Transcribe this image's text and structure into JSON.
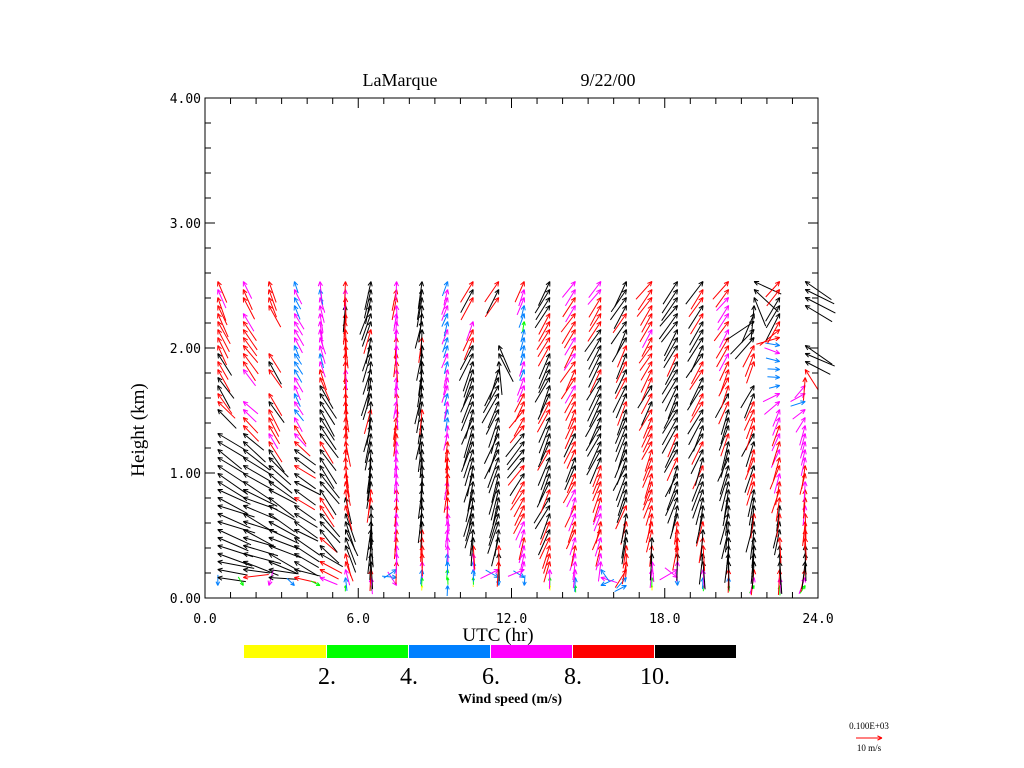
{
  "chart_data": {
    "type": "vector-field",
    "title": "LaMarque",
    "date": "9/22/00",
    "xlabel": "UTC (hr)",
    "ylabel": "Height (km)",
    "xlim": [
      0,
      24
    ],
    "ylim": [
      0,
      4
    ],
    "xticks": [
      "0.0",
      "6.0",
      "12.0",
      "18.0",
      "24.0"
    ],
    "xtick_values": [
      0,
      6,
      12,
      18,
      24
    ],
    "yticks": [
      "0.00",
      "1.00",
      "2.00",
      "3.00",
      "4.00"
    ],
    "ytick_values": [
      0,
      1,
      2,
      3,
      4
    ],
    "colorbar": {
      "title": "Wind speed (m/s)",
      "labels": [
        "2.",
        "4.",
        "6.",
        "8.",
        "10."
      ],
      "bins": [
        {
          "max": 2,
          "color": "#ffff00"
        },
        {
          "max": 4,
          "color": "#00ff00"
        },
        {
          "max": 6,
          "color": "#0080ff"
        },
        {
          "max": 8,
          "color": "#ff00ff"
        },
        {
          "max": 10,
          "color": "#ff0000"
        },
        {
          "max": 999,
          "color": "#000000"
        }
      ]
    },
    "reference_vector": {
      "scale_label": "0.100E+03",
      "label": "10 m/s",
      "speed": 10,
      "color": "#ff0000"
    },
    "gate_levels_km": {
      "start": 0.1,
      "step": 0.064,
      "count": 39
    },
    "profile_format": "[height_km, speed_m_s, direction_toward_deg]",
    "columns": [
      {
        "t": 0.5,
        "profile": [
          [
            0.1,
            3,
            180
          ],
          [
            0.14,
            9,
            268
          ],
          [
            0.25,
            14,
            285
          ],
          [
            0.8,
            14,
            295
          ],
          [
            1.3,
            12,
            305
          ],
          [
            1.6,
            10,
            320
          ],
          [
            1.8,
            9,
            330
          ],
          [
            2.5,
            9,
            335
          ]
        ],
        "gaps": [
          [
            1.35,
            1.45
          ]
        ]
      },
      {
        "t": 1.5,
        "profile": [
          [
            0.1,
            5,
            150
          ],
          [
            0.15,
            9,
            268
          ],
          [
            0.3,
            14,
            290
          ],
          [
            1.1,
            13,
            300
          ],
          [
            1.4,
            9,
            320
          ],
          [
            1.6,
            7,
            315
          ],
          [
            1.8,
            9,
            325
          ],
          [
            2.5,
            8,
            330
          ]
        ],
        "gaps": [
          [
            1.62,
            1.78
          ],
          [
            2.28,
            2.4
          ]
        ]
      },
      {
        "t": 2.5,
        "profile": [
          [
            0.1,
            6,
            190
          ],
          [
            0.15,
            9,
            272
          ],
          [
            0.3,
            13,
            295
          ],
          [
            1.0,
            12,
            305
          ],
          [
            1.3,
            8,
            330
          ],
          [
            1.6,
            9,
            325
          ],
          [
            2.5,
            9,
            335
          ]
        ],
        "gaps": [
          [
            1.68,
            1.8
          ],
          [
            2.02,
            2.3
          ]
        ]
      },
      {
        "t": 3.5,
        "profile": [
          [
            0.1,
            3,
            140
          ],
          [
            0.16,
            8,
            280
          ],
          [
            0.3,
            11,
            298
          ],
          [
            1.1,
            10,
            305
          ],
          [
            1.3,
            8,
            320
          ],
          [
            1.6,
            6,
            330
          ],
          [
            2.5,
            6,
            335
          ]
        ],
        "gaps": []
      },
      {
        "t": 4.5,
        "profile": [
          [
            0.1,
            3,
            120
          ],
          [
            0.16,
            7,
            295
          ],
          [
            0.35,
            9,
            305
          ],
          [
            0.6,
            11,
            320
          ],
          [
            1.7,
            11,
            330
          ],
          [
            1.85,
            7,
            345
          ],
          [
            2.5,
            7,
            350
          ]
        ],
        "gaps": []
      },
      {
        "t": 5.5,
        "profile": [
          [
            0.1,
            1.5,
            0
          ],
          [
            0.3,
            9,
            340
          ],
          [
            0.6,
            11,
            340
          ],
          [
            0.9,
            9,
            350
          ],
          [
            2.5,
            9,
            0
          ]
        ],
        "gaps": []
      },
      {
        "t": 6.5,
        "profile": [
          [
            0.1,
            3,
            350
          ],
          [
            0.3,
            11,
            0
          ],
          [
            1.5,
            11,
            10
          ],
          [
            2.5,
            11,
            15
          ]
        ],
        "gaps": []
      },
      {
        "t": 7.5,
        "profile": [
          [
            0.1,
            5,
            150
          ],
          [
            0.3,
            8,
            0
          ],
          [
            2.5,
            8,
            5
          ]
        ],
        "gaps": []
      },
      {
        "t": 8.5,
        "profile": [
          [
            0.1,
            3,
            0
          ],
          [
            0.4,
            9,
            0
          ],
          [
            0.8,
            11,
            5
          ],
          [
            2.5,
            11,
            10
          ]
        ],
        "gaps": []
      },
      {
        "t": 9.5,
        "profile": [
          [
            0.1,
            3,
            0
          ],
          [
            0.4,
            6,
            0
          ],
          [
            1.1,
            9,
            5
          ],
          [
            1.5,
            6,
            15
          ],
          [
            2.5,
            6,
            20
          ]
        ],
        "gaps": []
      },
      {
        "t": 10.5,
        "profile": [
          [
            0.1,
            1.5,
            0
          ],
          [
            0.4,
            9,
            0
          ],
          [
            0.6,
            12,
            10
          ],
          [
            1.9,
            12,
            20
          ],
          [
            2.2,
            8,
            25
          ],
          [
            2.5,
            9,
            30
          ]
        ],
        "gaps": [
          [
            2.27,
            2.4
          ]
        ]
      },
      {
        "t": 11.5,
        "profile": [
          [
            0.1,
            4,
            170
          ],
          [
            0.3,
            9,
            0
          ],
          [
            0.6,
            12,
            15
          ],
          [
            1.8,
            12,
            25
          ],
          [
            2.0,
            12,
            320
          ],
          [
            2.1,
            9,
            30
          ],
          [
            2.5,
            9,
            30
          ]
        ],
        "gaps": [
          [
            2.05,
            2.35
          ]
        ]
      },
      {
        "t": 12.5,
        "profile": [
          [
            0.1,
            4,
            180
          ],
          [
            0.3,
            7,
            5
          ],
          [
            0.7,
            9,
            25
          ],
          [
            1.3,
            11,
            40
          ],
          [
            1.6,
            7,
            30
          ],
          [
            2.2,
            4,
            15
          ],
          [
            2.5,
            8,
            25
          ]
        ],
        "gaps": []
      },
      {
        "t": 13.5,
        "profile": [
          [
            0.1,
            1.5,
            0
          ],
          [
            0.3,
            9,
            10
          ],
          [
            0.6,
            11,
            25
          ],
          [
            2.0,
            10,
            25
          ],
          [
            2.5,
            10,
            30
          ]
        ],
        "gaps": []
      },
      {
        "t": 14.5,
        "profile": [
          [
            0.1,
            3,
            0
          ],
          [
            0.3,
            8,
            15
          ],
          [
            1.0,
            9,
            25
          ],
          [
            2.2,
            9,
            30
          ],
          [
            2.5,
            8,
            35
          ]
        ],
        "gaps": []
      },
      {
        "t": 15.5,
        "profile": [
          [
            0.1,
            5,
            250
          ],
          [
            0.3,
            7,
            10
          ],
          [
            0.9,
            9,
            25
          ],
          [
            1.2,
            11,
            25
          ],
          [
            1.9,
            11,
            30
          ],
          [
            2.5,
            8,
            35
          ]
        ],
        "gaps": []
      },
      {
        "t": 16.5,
        "profile": [
          [
            0.1,
            5,
            60
          ],
          [
            0.3,
            9,
            5
          ],
          [
            0.8,
            11,
            20
          ],
          [
            2.5,
            10,
            30
          ]
        ],
        "gaps": []
      },
      {
        "t": 17.5,
        "profile": [
          [
            0.1,
            3,
            0
          ],
          [
            0.3,
            9,
            0
          ],
          [
            0.8,
            9,
            20
          ],
          [
            2.5,
            9,
            35
          ]
        ],
        "gaps": []
      },
      {
        "t": 18.5,
        "profile": [
          [
            0.1,
            6,
            180
          ],
          [
            0.3,
            9,
            0
          ],
          [
            0.9,
            11,
            20
          ],
          [
            2.5,
            11,
            35
          ]
        ],
        "gaps": []
      },
      {
        "t": 19.5,
        "profile": [
          [
            0.1,
            3,
            0
          ],
          [
            0.3,
            11,
            0
          ],
          [
            1.0,
            11,
            20
          ],
          [
            2.5,
            10,
            35
          ]
        ],
        "gaps": []
      },
      {
        "t": 20.5,
        "profile": [
          [
            0.1,
            1.5,
            0
          ],
          [
            0.3,
            12,
            0
          ],
          [
            0.9,
            11,
            15
          ],
          [
            1.8,
            9,
            25
          ],
          [
            2.5,
            8,
            40
          ]
        ],
        "gaps": []
      },
      {
        "t": 21.5,
        "profile": [
          [
            0.1,
            3,
            30
          ],
          [
            0.3,
            12,
            0
          ],
          [
            1.0,
            10,
            20
          ],
          [
            1.6,
            9,
            25
          ],
          [
            2.0,
            10,
            20
          ],
          [
            2.2,
            14,
            60
          ],
          [
            2.5,
            12,
            300
          ]
        ],
        "gaps": [
          [
            1.75,
            1.85
          ]
        ]
      },
      {
        "t": 22.5,
        "profile": [
          [
            0.1,
            3,
            0
          ],
          [
            0.3,
            12,
            0
          ],
          [
            1.0,
            9,
            15
          ],
          [
            1.5,
            8,
            25
          ],
          [
            1.7,
            5,
            80
          ],
          [
            2.0,
            6,
            110
          ],
          [
            2.2,
            11,
            30
          ],
          [
            2.5,
            9,
            40
          ]
        ],
        "gaps": []
      },
      {
        "t": 23.5,
        "profile": [
          [
            0.1,
            4,
            40
          ],
          [
            0.3,
            10,
            0
          ],
          [
            1.0,
            8,
            10
          ],
          [
            1.4,
            7,
            15
          ],
          [
            1.6,
            5,
            80
          ],
          [
            1.9,
            12,
            300
          ],
          [
            2.5,
            12,
            300
          ]
        ],
        "gaps": [
          [
            2.05,
            2.3
          ]
        ]
      }
    ]
  }
}
